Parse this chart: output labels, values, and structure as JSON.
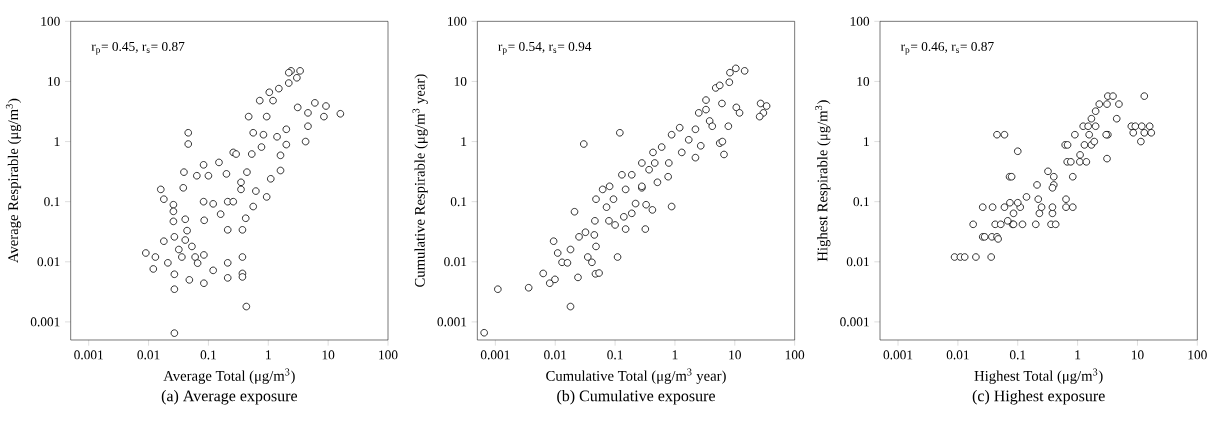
{
  "chart_data": [
    {
      "type": "scatter",
      "title": "(a) Average exposure",
      "xlabel": "Average Total (μg/m$^{3}$)",
      "ylabel": "Average Respirable (μg/m$^{3}$)",
      "annotations": [
        "r$_{p}$= 0.45, r$_{s}$= 0.87"
      ],
      "color": "#000000",
      "marker": "circle",
      "log": "xy",
      "xlim": [
        0.0005,
        100
      ],
      "ylim": [
        0.0005,
        100
      ],
      "xticks": [
        0.001,
        0.01,
        0.1,
        1,
        10,
        100
      ],
      "yticks": [
        0.001,
        0.01,
        0.1,
        1,
        10,
        100
      ],
      "x": [
        2.4,
        3.4,
        2.2,
        3.0,
        2.2,
        1.5,
        1.04,
        6.0,
        9.2,
        16,
        4.6,
        8.5,
        3.1,
        4.6,
        4.2,
        0.47,
        0.72,
        1.2,
        0.94,
        0.56,
        0.83,
        1.4,
        2.0,
        2.0,
        1.1,
        1.6,
        1.6,
        0.77,
        0.53,
        0.26,
        0.29,
        0.44,
        0.15,
        0.083,
        0.2,
        0.039,
        0.064,
        0.1,
        0.35,
        0.038,
        0.016,
        0.018,
        0.026,
        0.026,
        0.026,
        0.041,
        0.044,
        0.083,
        0.12,
        0.085,
        0.16,
        0.21,
        0.21,
        0.37,
        0.42,
        0.62,
        0.94,
        0.56,
        0.35,
        0.26,
        0.027,
        0.018,
        0.041,
        0.053,
        0.032,
        0.009,
        0.013,
        0.021,
        0.012,
        0.06,
        0.066,
        0.084,
        0.036,
        0.027,
        0.027,
        0.048,
        0.084,
        0.12,
        0.21,
        0.21,
        0.37,
        0.37,
        0.37,
        0.43,
        0.027,
        0.046,
        0.046
      ],
      "values": [
        15,
        15,
        14,
        11.5,
        9.4,
        7.6,
        6.6,
        4.4,
        3.9,
        2.9,
        3.0,
        2.6,
        3.7,
        1.8,
        1.0,
        2.6,
        4.8,
        4.8,
        2.6,
        1.4,
        1.3,
        1.2,
        1.6,
        0.89,
        0.24,
        0.33,
        0.59,
        0.81,
        0.62,
        0.66,
        0.62,
        0.31,
        0.45,
        0.41,
        0.29,
        0.31,
        0.27,
        0.27,
        0.21,
        0.17,
        0.16,
        0.11,
        0.089,
        0.069,
        0.047,
        0.051,
        0.033,
        0.1,
        0.092,
        0.049,
        0.062,
        0.1,
        0.034,
        0.034,
        0.053,
        0.15,
        0.12,
        0.083,
        0.16,
        0.1,
        0.026,
        0.022,
        0.023,
        0.018,
        0.016,
        0.014,
        0.012,
        0.0096,
        0.0076,
        0.012,
        0.0095,
        0.013,
        0.012,
        0.0062,
        0.0035,
        0.005,
        0.0044,
        0.0072,
        0.0096,
        0.0054,
        0.012,
        0.0064,
        0.0056,
        0.0018,
        0.00065,
        1.4,
        0.91
      ]
    },
    {
      "type": "scatter",
      "title": "(b) Cumulative exposure",
      "xlabel": "Cumulative Total (μg/m$^{3}$ year)",
      "ylabel": "Cumulative Respirable (μg/m$^{3}$ year)",
      "annotations": [
        "r$_{p}$= 0.54, r$_{s}$= 0.94"
      ],
      "color": "#000000",
      "marker": "circle",
      "log": "xy",
      "xlim": [
        0.0005,
        100
      ],
      "ylim": [
        0.0005,
        100
      ],
      "xticks": [
        0.001,
        0.01,
        0.1,
        1,
        10,
        100
      ],
      "yticks": [
        0.001,
        0.01,
        0.1,
        1,
        10,
        100
      ],
      "x": [
        0.00065,
        0.0011,
        0.0036,
        0.018,
        0.0063,
        0.0081,
        0.0099,
        0.0094,
        0.011,
        0.013,
        0.016,
        0.018,
        0.021,
        0.024,
        0.025,
        0.032,
        0.035,
        0.041,
        0.048,
        0.047,
        0.054,
        0.045,
        0.046,
        0.03,
        0.12,
        0.11,
        0.048,
        0.062,
        0.081,
        0.072,
        0.079,
        0.1,
        0.14,
        0.15,
        0.13,
        0.19,
        0.15,
        0.094,
        0.19,
        0.22,
        0.32,
        0.42,
        0.33,
        0.28,
        0.28,
        0.37,
        0.51,
        0.46,
        0.28,
        0.77,
        0.88,
        0.79,
        0.43,
        0.6,
        0.88,
        1.3,
        1.7,
        1.2,
        2.2,
        2.7,
        2.2,
        2.5,
        3.3,
        3.8,
        4.2,
        5.6,
        6.2,
        6.6,
        7.8,
        4.8,
        5.6,
        8.1,
        8.3,
        10.4,
        14.6,
        10.6,
        12,
        27,
        34,
        30,
        26,
        6.1,
        3.3
      ],
      "values": [
        0.00066,
        0.0035,
        0.0037,
        0.0018,
        0.0064,
        0.0044,
        0.0051,
        0.022,
        0.014,
        0.0098,
        0.0096,
        0.016,
        0.068,
        0.0055,
        0.026,
        0.031,
        0.012,
        0.0098,
        0.018,
        0.0063,
        0.0065,
        0.028,
        0.048,
        0.91,
        1.4,
        0.012,
        0.11,
        0.16,
        0.18,
        0.081,
        0.048,
        0.041,
        0.056,
        0.035,
        0.28,
        0.28,
        0.16,
        0.11,
        0.064,
        0.093,
        0.035,
        0.073,
        0.089,
        0.17,
        0.44,
        0.34,
        0.21,
        0.44,
        0.18,
        0.26,
        0.083,
        0.44,
        0.66,
        0.81,
        1.3,
        0.66,
        1.07,
        1.7,
        0.54,
        0.85,
        1.6,
        3.0,
        4.9,
        2.2,
        1.8,
        0.94,
        1.0,
        0.61,
        1.8,
        7.8,
        8.6,
        9.7,
        14,
        16.5,
        15,
        3.7,
        3.0,
        4.3,
        3.9,
        3.0,
        2.6,
        4.3,
        3.4
      ]
    },
    {
      "type": "scatter",
      "title": "(c) Highest exposure",
      "xlabel": "Highest Total (μg/m$^{3}$)",
      "ylabel": "Highest Respirable (μg/m$^{3}$)",
      "annotations": [
        "r$_{p}$= 0.46, r$_{s}$= 0.87"
      ],
      "color": "#000000",
      "marker": "circle",
      "log": "xy",
      "xlim": [
        0.0005,
        100
      ],
      "ylim": [
        0.0005,
        100
      ],
      "xticks": [
        0.001,
        0.01,
        0.1,
        1,
        10,
        100
      ],
      "yticks": [
        0.001,
        0.01,
        0.1,
        1,
        10,
        100
      ],
      "x": [
        0.0088,
        0.011,
        0.013,
        0.02,
        0.036,
        0.026,
        0.028,
        0.037,
        0.045,
        0.047,
        0.018,
        0.042,
        0.052,
        0.082,
        0.085,
        0.12,
        0.2,
        0.36,
        0.43,
        0.068,
        0.085,
        0.38,
        0.23,
        0.026,
        0.038,
        0.06,
        0.11,
        0.25,
        0.38,
        0.64,
        0.83,
        0.074,
        0.1,
        0.22,
        0.64,
        0.14,
        0.21,
        0.4,
        0.38,
        0.073,
        0.079,
        0.83,
        0.4,
        0.32,
        0.67,
        0.77,
        1.09,
        1.4,
        3.1,
        0.1,
        1.1,
        0.62,
        0.68,
        1.3,
        1.7,
        0.045,
        0.06,
        0.9,
        1.56,
        3.2,
        3.0,
        1.9,
        11.4,
        13,
        8.5,
        17,
        1.24,
        1.5,
        2.0,
        7.9,
        9.2,
        11.8,
        16,
        1.7,
        4.5,
        2.0,
        2.3,
        3.1,
        4.9,
        3.2,
        3.9,
        13
      ],
      "values": [
        0.012,
        0.012,
        0.012,
        0.012,
        0.012,
        0.026,
        0.026,
        0.026,
        0.026,
        0.024,
        0.042,
        0.042,
        0.042,
        0.042,
        0.042,
        0.042,
        0.042,
        0.042,
        0.042,
        0.048,
        0.064,
        0.064,
        0.064,
        0.081,
        0.081,
        0.081,
        0.081,
        0.081,
        0.081,
        0.081,
        0.081,
        0.096,
        0.096,
        0.11,
        0.11,
        0.12,
        0.19,
        0.19,
        0.17,
        0.26,
        0.26,
        0.26,
        0.26,
        0.32,
        0.46,
        0.46,
        0.46,
        0.46,
        0.52,
        0.69,
        0.6,
        0.88,
        0.88,
        0.88,
        0.88,
        1.3,
        1.3,
        1.3,
        1.3,
        1.3,
        1.3,
        1.0,
        1.0,
        1.4,
        1.4,
        1.4,
        1.8,
        1.8,
        1.8,
        1.8,
        1.8,
        1.8,
        1.8,
        2.4,
        2.4,
        3.2,
        4.2,
        4.2,
        4.2,
        5.7,
        5.7,
        5.7
      ]
    }
  ]
}
